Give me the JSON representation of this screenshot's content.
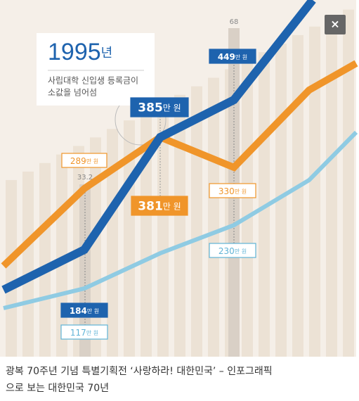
{
  "infographic": {
    "year": {
      "number": "1995",
      "unit": "년"
    },
    "note": [
      "사립대학 신입생 등록금이",
      "소값을 넘어섬"
    ],
    "labels": {
      "l289": {
        "number": "289",
        "unit": "만 원"
      },
      "l381": {
        "number": "381",
        "unit": "만 원"
      },
      "l385": {
        "number": "385",
        "unit": "만 원"
      },
      "l449": {
        "number": "449",
        "unit": "만 원"
      },
      "l330": {
        "number": "330",
        "unit": "만 원"
      },
      "l230": {
        "number": "230",
        "unit": "만 원"
      },
      "l184": {
        "number": "184",
        "unit": "만 원"
      },
      "l117": {
        "number": "117",
        "unit": "만 원"
      }
    },
    "bar_values": {
      "b1": "33.2",
      "b2": "68"
    }
  },
  "close": "×",
  "caption": [
    "광복 70주년 기념 특별기획전 ‘사랑하라! 대한민국’ – 인포그래픽",
    "으로 보는 대한민국 70년"
  ]
}
